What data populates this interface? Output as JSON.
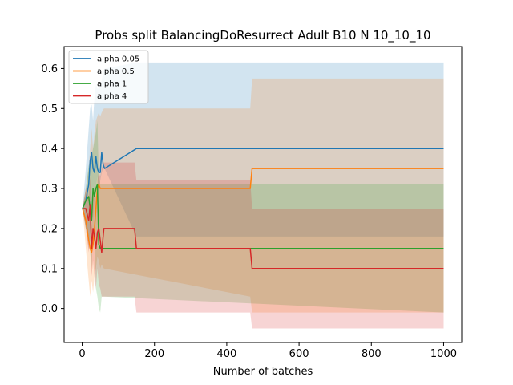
{
  "chart_data": {
    "type": "line",
    "title": "Probs split BalancingDoResurrect Adult B10 N 10_10_10",
    "xlabel": "Number of batches",
    "ylabel": "",
    "xlim": [
      -50,
      1050
    ],
    "ylim": [
      -0.085,
      0.655
    ],
    "xticks": [
      0,
      200,
      400,
      600,
      800,
      1000
    ],
    "yticks": [
      0.0,
      0.1,
      0.2,
      0.3,
      0.4,
      0.5,
      0.6
    ],
    "ytick_labels": [
      "0.0",
      "0.1",
      "0.2",
      "0.3",
      "0.4",
      "0.5",
      "0.6"
    ],
    "grid": false,
    "legend_position": "upper-left",
    "series": [
      {
        "name": "alpha 0.05",
        "color": "#1f77b4",
        "x": [
          1,
          10,
          18,
          22,
          26,
          30,
          34,
          38,
          42,
          46,
          50,
          54,
          58,
          62,
          150,
          1000
        ],
        "y": [
          0.25,
          0.27,
          0.31,
          0.37,
          0.39,
          0.35,
          0.34,
          0.38,
          0.35,
          0.34,
          0.34,
          0.39,
          0.36,
          0.35,
          0.4,
          0.4
        ],
        "lower": [
          0.25,
          0.2,
          0.15,
          0.18,
          0.24,
          0.22,
          0.28,
          0.3,
          0.33,
          0.28,
          0.32,
          0.34,
          0.35,
          0.35,
          0.18,
          0.18
        ],
        "upper": [
          0.25,
          0.35,
          0.45,
          0.5,
          0.51,
          0.47,
          0.53,
          0.56,
          0.55,
          0.55,
          0.56,
          0.57,
          0.59,
          0.6,
          0.615,
          0.615
        ]
      },
      {
        "name": "alpha 0.5",
        "color": "#ff7f0e",
        "x": [
          1,
          10,
          18,
          22,
          26,
          30,
          34,
          38,
          42,
          46,
          50,
          54,
          60,
          465,
          470,
          1000
        ],
        "y": [
          0.25,
          0.22,
          0.17,
          0.15,
          0.14,
          0.16,
          0.2,
          0.25,
          0.3,
          0.31,
          0.3,
          0.3,
          0.3,
          0.3,
          0.35,
          0.35
        ],
        "lower": [
          0.25,
          0.15,
          0.07,
          0.03,
          0.07,
          0.04,
          0.08,
          0.1,
          0.13,
          0.12,
          0.1,
          0.11,
          0.1,
          0.03,
          -0.01,
          -0.01
        ],
        "upper": [
          0.25,
          0.3,
          0.35,
          0.4,
          0.45,
          0.4,
          0.44,
          0.47,
          0.48,
          0.49,
          0.48,
          0.49,
          0.5,
          0.5,
          0.575,
          0.575
        ]
      },
      {
        "name": "alpha 1",
        "color": "#2ca02c",
        "x": [
          1,
          10,
          18,
          22,
          26,
          30,
          34,
          38,
          42,
          46,
          50,
          54,
          60,
          1000
        ],
        "y": [
          0.25,
          0.27,
          0.28,
          0.25,
          0.22,
          0.3,
          0.28,
          0.3,
          0.31,
          0.16,
          0.15,
          0.15,
          0.15,
          0.15
        ],
        "lower": [
          0.25,
          0.2,
          0.18,
          0.14,
          0.1,
          0.2,
          0.15,
          0.05,
          0.03,
          0.0,
          -0.01,
          0.03,
          0.03,
          -0.01
        ],
        "upper": [
          0.25,
          0.3,
          0.36,
          0.34,
          0.38,
          0.4,
          0.42,
          0.44,
          0.47,
          0.33,
          0.31,
          0.31,
          0.31,
          0.31
        ]
      },
      {
        "name": "alpha 4",
        "color": "#d62728",
        "x": [
          1,
          10,
          18,
          22,
          26,
          30,
          34,
          38,
          42,
          46,
          50,
          54,
          60,
          145,
          150,
          465,
          470,
          1000
        ],
        "y": [
          0.25,
          0.25,
          0.22,
          0.26,
          0.15,
          0.2,
          0.18,
          0.15,
          0.19,
          0.2,
          0.17,
          0.14,
          0.2,
          0.2,
          0.15,
          0.15,
          0.1,
          0.1
        ],
        "lower": [
          0.25,
          0.2,
          0.14,
          0.17,
          0.08,
          0.12,
          0.08,
          0.05,
          0.1,
          0.06,
          0.05,
          0.03,
          0.03,
          0.03,
          -0.01,
          -0.01,
          -0.05,
          -0.05
        ],
        "upper": [
          0.25,
          0.3,
          0.28,
          0.33,
          0.25,
          0.28,
          0.3,
          0.28,
          0.32,
          0.34,
          0.33,
          0.35,
          0.365,
          0.365,
          0.32,
          0.32,
          0.25,
          0.25
        ]
      }
    ]
  }
}
